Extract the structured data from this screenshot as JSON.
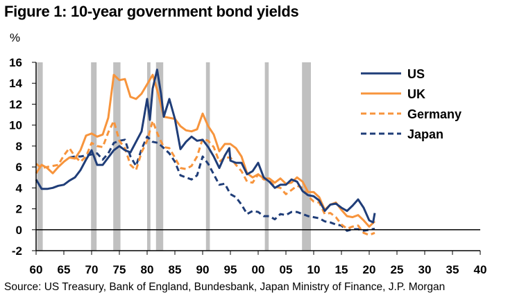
{
  "title": "Figure 1: 10-year government bond yields",
  "unit_label": "%",
  "source": "Source: US Treasury, Bank of England, Bundesbank, Japan Ministry of Finance, J.P. Morgan",
  "colors": {
    "US": "#1f3d78",
    "UK": "#f7943c",
    "Germany": "#f7943c",
    "Japan": "#1f3d78",
    "recession": "#c0c0c0",
    "zero_line": "#000000"
  },
  "chart_data": {
    "type": "line",
    "title": "Figure 1: 10-year government bond yields",
    "ylabel": "%",
    "xlabel": "",
    "ylim": [
      -2,
      16
    ],
    "xlim": [
      1960,
      2040
    ],
    "yticks": [
      -2,
      0,
      2,
      4,
      6,
      8,
      10,
      12,
      14,
      16
    ],
    "xticks": [
      1960,
      1965,
      1970,
      1975,
      1980,
      1985,
      1990,
      1995,
      2000,
      2005,
      2010,
      2015,
      2020,
      2025,
      2030,
      2035,
      2040
    ],
    "xtick_labels": [
      "60",
      "65",
      "70",
      "75",
      "80",
      "85",
      "90",
      "95",
      "00",
      "05",
      "10",
      "15",
      "20",
      "25",
      "30",
      "35",
      "40"
    ],
    "legend_position": "top-right",
    "recessions": [
      [
        1960.2,
        1961.2
      ],
      [
        1969.9,
        1970.9
      ],
      [
        1973.9,
        1975.2
      ],
      [
        1980.0,
        1980.6
      ],
      [
        1981.6,
        1982.9
      ],
      [
        1990.6,
        1991.3
      ],
      [
        2001.2,
        2001.9
      ],
      [
        2007.9,
        2009.5
      ]
    ],
    "series": [
      {
        "name": "US",
        "style": "solid",
        "color": "#1f3d78",
        "points": [
          [
            1960,
            4.8
          ],
          [
            1961,
            3.9
          ],
          [
            1962,
            3.9
          ],
          [
            1963,
            4.0
          ],
          [
            1964,
            4.2
          ],
          [
            1965,
            4.3
          ],
          [
            1966,
            4.7
          ],
          [
            1967,
            5.0
          ],
          [
            1968,
            5.7
          ],
          [
            1969,
            6.7
          ],
          [
            1970,
            7.6
          ],
          [
            1971,
            6.2
          ],
          [
            1972,
            6.2
          ],
          [
            1973,
            6.9
          ],
          [
            1974,
            7.6
          ],
          [
            1975,
            8.0
          ],
          [
            1976,
            7.6
          ],
          [
            1977,
            7.4
          ],
          [
            1978,
            8.4
          ],
          [
            1979,
            9.4
          ],
          [
            1980,
            12.5
          ],
          [
            1980.5,
            10.5
          ],
          [
            1981,
            13.5
          ],
          [
            1981.8,
            15.3
          ],
          [
            1982.5,
            13.0
          ],
          [
            1983,
            10.8
          ],
          [
            1984,
            12.5
          ],
          [
            1985,
            10.6
          ],
          [
            1986,
            7.7
          ],
          [
            1987,
            8.4
          ],
          [
            1988,
            8.9
          ],
          [
            1989,
            8.5
          ],
          [
            1990,
            8.6
          ],
          [
            1991,
            7.9
          ],
          [
            1992,
            7.0
          ],
          [
            1993,
            5.9
          ],
          [
            1994,
            7.1
          ],
          [
            1994.8,
            7.8
          ],
          [
            1995,
            6.6
          ],
          [
            1996,
            6.4
          ],
          [
            1997,
            6.4
          ],
          [
            1998,
            5.3
          ],
          [
            1999,
            5.6
          ],
          [
            2000,
            6.4
          ],
          [
            2001,
            5.0
          ],
          [
            2002,
            4.6
          ],
          [
            2003,
            4.0
          ],
          [
            2004,
            4.3
          ],
          [
            2005,
            4.3
          ],
          [
            2006,
            4.8
          ],
          [
            2007,
            4.6
          ],
          [
            2008,
            3.7
          ],
          [
            2009,
            3.3
          ],
          [
            2010,
            3.2
          ],
          [
            2011,
            2.8
          ],
          [
            2012,
            1.8
          ],
          [
            2013,
            2.4
          ],
          [
            2014,
            2.5
          ],
          [
            2015,
            2.1
          ],
          [
            2016,
            1.8
          ],
          [
            2017,
            2.3
          ],
          [
            2018,
            2.9
          ],
          [
            2019,
            2.1
          ],
          [
            2020,
            0.9
          ],
          [
            2020.7,
            0.7
          ],
          [
            2021,
            1.6
          ]
        ]
      },
      {
        "name": "UK",
        "style": "solid",
        "color": "#f7943c",
        "points": [
          [
            1960,
            5.4
          ],
          [
            1961,
            6.2
          ],
          [
            1962,
            5.9
          ],
          [
            1963,
            5.4
          ],
          [
            1964,
            6.0
          ],
          [
            1965,
            6.5
          ],
          [
            1966,
            6.9
          ],
          [
            1967,
            6.8
          ],
          [
            1968,
            7.6
          ],
          [
            1969,
            9.0
          ],
          [
            1970,
            9.2
          ],
          [
            1971,
            8.9
          ],
          [
            1972,
            9.1
          ],
          [
            1973,
            10.7
          ],
          [
            1974,
            14.8
          ],
          [
            1975,
            14.3
          ],
          [
            1976,
            14.4
          ],
          [
            1977,
            12.7
          ],
          [
            1978,
            12.5
          ],
          [
            1979,
            13.0
          ],
          [
            1980,
            13.9
          ],
          [
            1981,
            14.8
          ],
          [
            1982,
            13.0
          ],
          [
            1983,
            10.8
          ],
          [
            1984,
            10.7
          ],
          [
            1985,
            10.6
          ],
          [
            1986,
            9.9
          ],
          [
            1987,
            9.5
          ],
          [
            1988,
            9.4
          ],
          [
            1989,
            9.6
          ],
          [
            1990,
            11.1
          ],
          [
            1991,
            9.9
          ],
          [
            1992,
            9.1
          ],
          [
            1993,
            7.5
          ],
          [
            1994,
            8.2
          ],
          [
            1995,
            8.2
          ],
          [
            1996,
            7.8
          ],
          [
            1997,
            7.0
          ],
          [
            1998,
            5.4
          ],
          [
            1999,
            5.0
          ],
          [
            2000,
            5.3
          ],
          [
            2001,
            4.9
          ],
          [
            2002,
            4.9
          ],
          [
            2003,
            4.5
          ],
          [
            2004,
            4.9
          ],
          [
            2005,
            4.4
          ],
          [
            2006,
            4.5
          ],
          [
            2007,
            5.0
          ],
          [
            2008,
            4.6
          ],
          [
            2009,
            3.6
          ],
          [
            2010,
            3.6
          ],
          [
            2011,
            3.1
          ],
          [
            2012,
            1.9
          ],
          [
            2013,
            2.4
          ],
          [
            2014,
            2.6
          ],
          [
            2015,
            1.9
          ],
          [
            2016,
            1.3
          ],
          [
            2017,
            1.2
          ],
          [
            2018,
            1.4
          ],
          [
            2019,
            0.9
          ],
          [
            2020,
            0.3
          ],
          [
            2021,
            0.8
          ]
        ]
      },
      {
        "name": "Germany",
        "style": "dashed",
        "color": "#f7943c",
        "points": [
          [
            1960,
            6.3
          ],
          [
            1961,
            5.9
          ],
          [
            1962,
            6.0
          ],
          [
            1963,
            6.1
          ],
          [
            1964,
            6.2
          ],
          [
            1965,
            7.1
          ],
          [
            1966,
            7.8
          ],
          [
            1967,
            7.0
          ],
          [
            1968,
            6.5
          ],
          [
            1969,
            7.0
          ],
          [
            1970,
            8.3
          ],
          [
            1971,
            8.0
          ],
          [
            1972,
            7.9
          ],
          [
            1973,
            9.3
          ],
          [
            1974,
            10.4
          ],
          [
            1975,
            8.5
          ],
          [
            1976,
            7.8
          ],
          [
            1977,
            6.2
          ],
          [
            1978,
            5.7
          ],
          [
            1979,
            7.4
          ],
          [
            1980,
            8.5
          ],
          [
            1981,
            10.4
          ],
          [
            1982,
            9.0
          ],
          [
            1983,
            7.9
          ],
          [
            1984,
            7.8
          ],
          [
            1985,
            6.9
          ],
          [
            1986,
            5.9
          ],
          [
            1987,
            5.8
          ],
          [
            1988,
            6.1
          ],
          [
            1989,
            7.0
          ],
          [
            1990,
            8.7
          ],
          [
            1991,
            8.5
          ],
          [
            1992,
            7.9
          ],
          [
            1993,
            6.5
          ],
          [
            1994,
            6.9
          ],
          [
            1995,
            6.9
          ],
          [
            1996,
            6.2
          ],
          [
            1997,
            5.6
          ],
          [
            1998,
            4.6
          ],
          [
            1999,
            4.5
          ],
          [
            2000,
            5.3
          ],
          [
            2001,
            4.8
          ],
          [
            2002,
            4.8
          ],
          [
            2003,
            4.1
          ],
          [
            2004,
            4.0
          ],
          [
            2005,
            3.4
          ],
          [
            2006,
            3.8
          ],
          [
            2007,
            4.2
          ],
          [
            2008,
            4.0
          ],
          [
            2009,
            3.2
          ],
          [
            2010,
            2.7
          ],
          [
            2011,
            2.6
          ],
          [
            2012,
            1.5
          ],
          [
            2013,
            1.6
          ],
          [
            2014,
            1.2
          ],
          [
            2015,
            0.5
          ],
          [
            2016,
            0.1
          ],
          [
            2017,
            0.3
          ],
          [
            2018,
            0.4
          ],
          [
            2019,
            -0.3
          ],
          [
            2020,
            -0.5
          ],
          [
            2021,
            -0.3
          ]
        ]
      },
      {
        "name": "Japan",
        "style": "dashed",
        "color": "#1f3d78",
        "points": [
          [
            1966,
            6.9
          ],
          [
            1967,
            7.0
          ],
          [
            1968,
            7.0
          ],
          [
            1969,
            7.1
          ],
          [
            1970,
            7.2
          ],
          [
            1971,
            7.3
          ],
          [
            1972,
            6.7
          ],
          [
            1973,
            7.3
          ],
          [
            1974,
            8.3
          ],
          [
            1975,
            8.5
          ],
          [
            1976,
            8.6
          ],
          [
            1977,
            7.0
          ],
          [
            1978,
            6.1
          ],
          [
            1979,
            7.7
          ],
          [
            1980,
            8.9
          ],
          [
            1981,
            8.4
          ],
          [
            1982,
            8.3
          ],
          [
            1983,
            7.8
          ],
          [
            1984,
            7.3
          ],
          [
            1985,
            6.5
          ],
          [
            1986,
            5.2
          ],
          [
            1987,
            5.0
          ],
          [
            1988,
            4.8
          ],
          [
            1989,
            5.2
          ],
          [
            1990,
            7.0
          ],
          [
            1991,
            6.3
          ],
          [
            1992,
            5.3
          ],
          [
            1993,
            4.3
          ],
          [
            1994,
            4.4
          ],
          [
            1995,
            3.4
          ],
          [
            1996,
            3.1
          ],
          [
            1997,
            2.4
          ],
          [
            1998,
            1.5
          ],
          [
            1999,
            1.8
          ],
          [
            2000,
            1.7
          ],
          [
            2001,
            1.3
          ],
          [
            2002,
            1.3
          ],
          [
            2003,
            1.0
          ],
          [
            2004,
            1.5
          ],
          [
            2005,
            1.4
          ],
          [
            2006,
            1.7
          ],
          [
            2007,
            1.7
          ],
          [
            2008,
            1.5
          ],
          [
            2009,
            1.3
          ],
          [
            2010,
            1.2
          ],
          [
            2011,
            1.1
          ],
          [
            2012,
            0.8
          ],
          [
            2013,
            0.7
          ],
          [
            2014,
            0.5
          ],
          [
            2015,
            0.4
          ],
          [
            2016,
            -0.1
          ],
          [
            2017,
            0.05
          ],
          [
            2018,
            0.05
          ],
          [
            2019,
            -0.1
          ],
          [
            2020,
            0.0
          ],
          [
            2021,
            0.1
          ]
        ]
      }
    ]
  }
}
